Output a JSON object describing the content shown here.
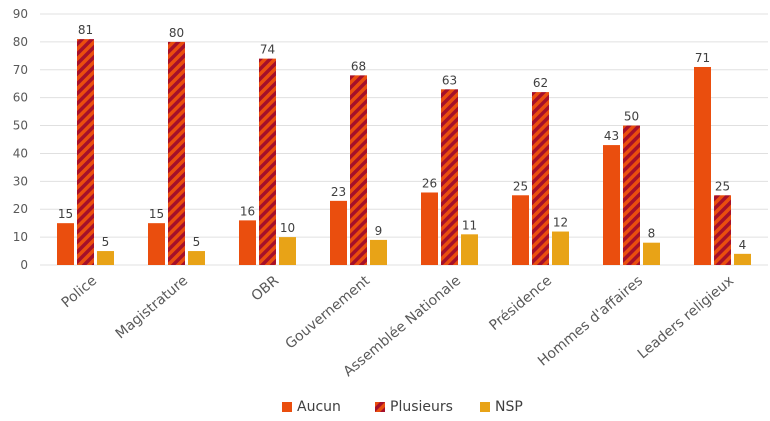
{
  "chart_data": {
    "type": "bar",
    "title": "",
    "xlabel": "",
    "ylabel": "",
    "ylim": [
      0,
      90
    ],
    "y_ticks": [
      0,
      10,
      20,
      30,
      40,
      50,
      60,
      70,
      80,
      90
    ],
    "grid": true,
    "legend_position": "bottom",
    "categories": [
      "Police",
      "Magistrature",
      "OBR",
      "Gouvernement",
      "Assemblée Nationale",
      "Présidence",
      "Hommes d'affaires",
      "Leaders religieux"
    ],
    "series": [
      {
        "name": "Aucun",
        "values": [
          15,
          15,
          16,
          23,
          26,
          25,
          43,
          71
        ],
        "color": "#ea4e0e",
        "pattern": "solid"
      },
      {
        "name": "Plusieurs",
        "values": [
          81,
          80,
          74,
          68,
          63,
          62,
          50,
          25
        ],
        "color": "#ea4e0e",
        "pattern": "diagonal-stripes",
        "stripe_color": "#a5102a"
      },
      {
        "name": "NSP",
        "values": [
          5,
          5,
          10,
          9,
          11,
          12,
          8,
          4
        ],
        "color": "#e8a317",
        "pattern": "solid"
      }
    ]
  }
}
